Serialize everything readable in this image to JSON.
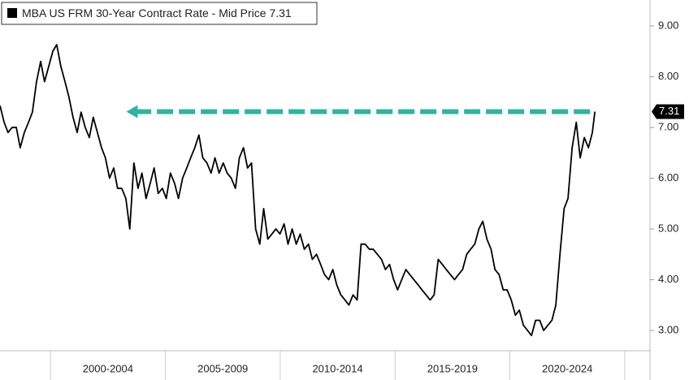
{
  "chart_data": {
    "type": "line",
    "xlim": [
      1997.8,
      2026.1
    ],
    "ylim": [
      2.6,
      9.51
    ],
    "yticks": [
      {
        "value": 3,
        "label": "3.00"
      },
      {
        "value": 4,
        "label": "4.00"
      },
      {
        "value": 5,
        "label": "5.00"
      },
      {
        "value": 6,
        "label": "6.00"
      },
      {
        "value": 7,
        "label": "7.00"
      },
      {
        "value": 8,
        "label": "8.00"
      },
      {
        "value": 9,
        "label": "9.00"
      }
    ],
    "xticks": [
      {
        "value": 2002.5,
        "label": "2000-2004"
      },
      {
        "value": 2007.5,
        "label": "2005-2009"
      },
      {
        "value": 2012.5,
        "label": "2010-2014"
      },
      {
        "value": 2017.5,
        "label": "2015-2019"
      },
      {
        "value": 2022.5,
        "label": "2020-2024"
      }
    ],
    "xseparators": [
      2000,
      2005,
      2010,
      2015,
      2020,
      2025
    ],
    "arrow": {
      "to_x": 2003.3,
      "color": "#2db59f"
    },
    "series": [
      {
        "name": "MBA US FRM 30-Year Contract Rate - Mid Price",
        "color": "#000000",
        "x": [
          1997.8,
          1997.98,
          1998.15,
          1998.33,
          1998.51,
          1998.68,
          1998.86,
          1999.04,
          1999.21,
          1999.39,
          1999.57,
          1999.74,
          1999.92,
          2000.1,
          2000.27,
          2000.45,
          2000.63,
          2000.8,
          2000.98,
          2001.16,
          2001.33,
          2001.51,
          2001.69,
          2001.86,
          2002.04,
          2002.22,
          2002.39,
          2002.57,
          2002.75,
          2002.92,
          2003.1,
          2003.28,
          2003.45,
          2003.63,
          2003.81,
          2003.98,
          2004.16,
          2004.34,
          2004.51,
          2004.69,
          2004.87,
          2005.04,
          2005.22,
          2005.4,
          2005.57,
          2005.75,
          2005.93,
          2006.1,
          2006.28,
          2006.46,
          2006.63,
          2006.81,
          2006.99,
          2007.16,
          2007.34,
          2007.52,
          2007.69,
          2007.87,
          2008.05,
          2008.22,
          2008.4,
          2008.58,
          2008.75,
          2008.93,
          2009.11,
          2009.28,
          2009.46,
          2009.64,
          2009.81,
          2009.99,
          2010.17,
          2010.34,
          2010.52,
          2010.7,
          2010.87,
          2011.05,
          2011.23,
          2011.4,
          2011.58,
          2011.76,
          2011.93,
          2012.11,
          2012.29,
          2012.46,
          2012.64,
          2012.82,
          2012.99,
          2013.17,
          2013.35,
          2013.52,
          2013.7,
          2013.88,
          2014.05,
          2014.23,
          2014.41,
          2014.58,
          2014.76,
          2014.94,
          2015.11,
          2015.29,
          2015.47,
          2015.64,
          2015.82,
          2016.0,
          2016.17,
          2016.35,
          2016.53,
          2016.7,
          2016.88,
          2017.06,
          2017.23,
          2017.41,
          2017.59,
          2017.76,
          2017.94,
          2018.12,
          2018.29,
          2018.47,
          2018.65,
          2018.82,
          2019.0,
          2019.18,
          2019.35,
          2019.53,
          2019.71,
          2019.88,
          2020.06,
          2020.24,
          2020.41,
          2020.59,
          2020.77,
          2020.94,
          2021.12,
          2021.3,
          2021.47,
          2021.65,
          2021.83,
          2022.0,
          2022.18,
          2022.36,
          2022.53,
          2022.71,
          2022.89,
          2023.06,
          2023.24,
          2023.42,
          2023.59,
          2023.7
        ],
        "values": [
          7.43,
          7.1,
          6.9,
          7.0,
          7.0,
          6.6,
          6.9,
          7.1,
          7.3,
          7.9,
          8.3,
          7.9,
          8.2,
          8.5,
          8.63,
          8.2,
          7.9,
          7.6,
          7.2,
          6.9,
          7.3,
          7.0,
          6.8,
          7.2,
          6.9,
          6.6,
          6.4,
          6.0,
          6.2,
          5.8,
          5.8,
          5.6,
          5.0,
          6.3,
          5.8,
          6.1,
          5.6,
          5.9,
          6.2,
          5.7,
          5.8,
          5.6,
          6.1,
          5.9,
          5.6,
          6.0,
          6.2,
          6.4,
          6.6,
          6.85,
          6.4,
          6.3,
          6.1,
          6.4,
          6.1,
          6.3,
          6.1,
          6.0,
          5.8,
          6.4,
          6.6,
          6.2,
          6.3,
          5.0,
          4.7,
          5.4,
          4.8,
          4.9,
          5.0,
          4.9,
          5.1,
          4.7,
          5.0,
          4.7,
          4.9,
          4.6,
          4.7,
          4.4,
          4.5,
          4.3,
          4.1,
          4.0,
          4.2,
          3.9,
          3.7,
          3.6,
          3.5,
          3.7,
          3.6,
          4.7,
          4.7,
          4.6,
          4.6,
          4.5,
          4.4,
          4.2,
          4.3,
          4.0,
          3.8,
          4.0,
          4.2,
          4.1,
          4.0,
          3.9,
          3.8,
          3.7,
          3.6,
          3.7,
          4.4,
          4.3,
          4.2,
          4.1,
          4.0,
          4.1,
          4.2,
          4.5,
          4.6,
          4.7,
          5.0,
          5.15,
          4.8,
          4.6,
          4.2,
          4.1,
          3.8,
          3.8,
          3.6,
          3.3,
          3.4,
          3.1,
          3.0,
          2.9,
          3.2,
          3.2,
          3.0,
          3.1,
          3.2,
          3.5,
          4.5,
          5.4,
          5.6,
          6.6,
          7.1,
          6.4,
          6.8,
          6.6,
          6.9,
          7.31
        ]
      }
    ]
  }
}
